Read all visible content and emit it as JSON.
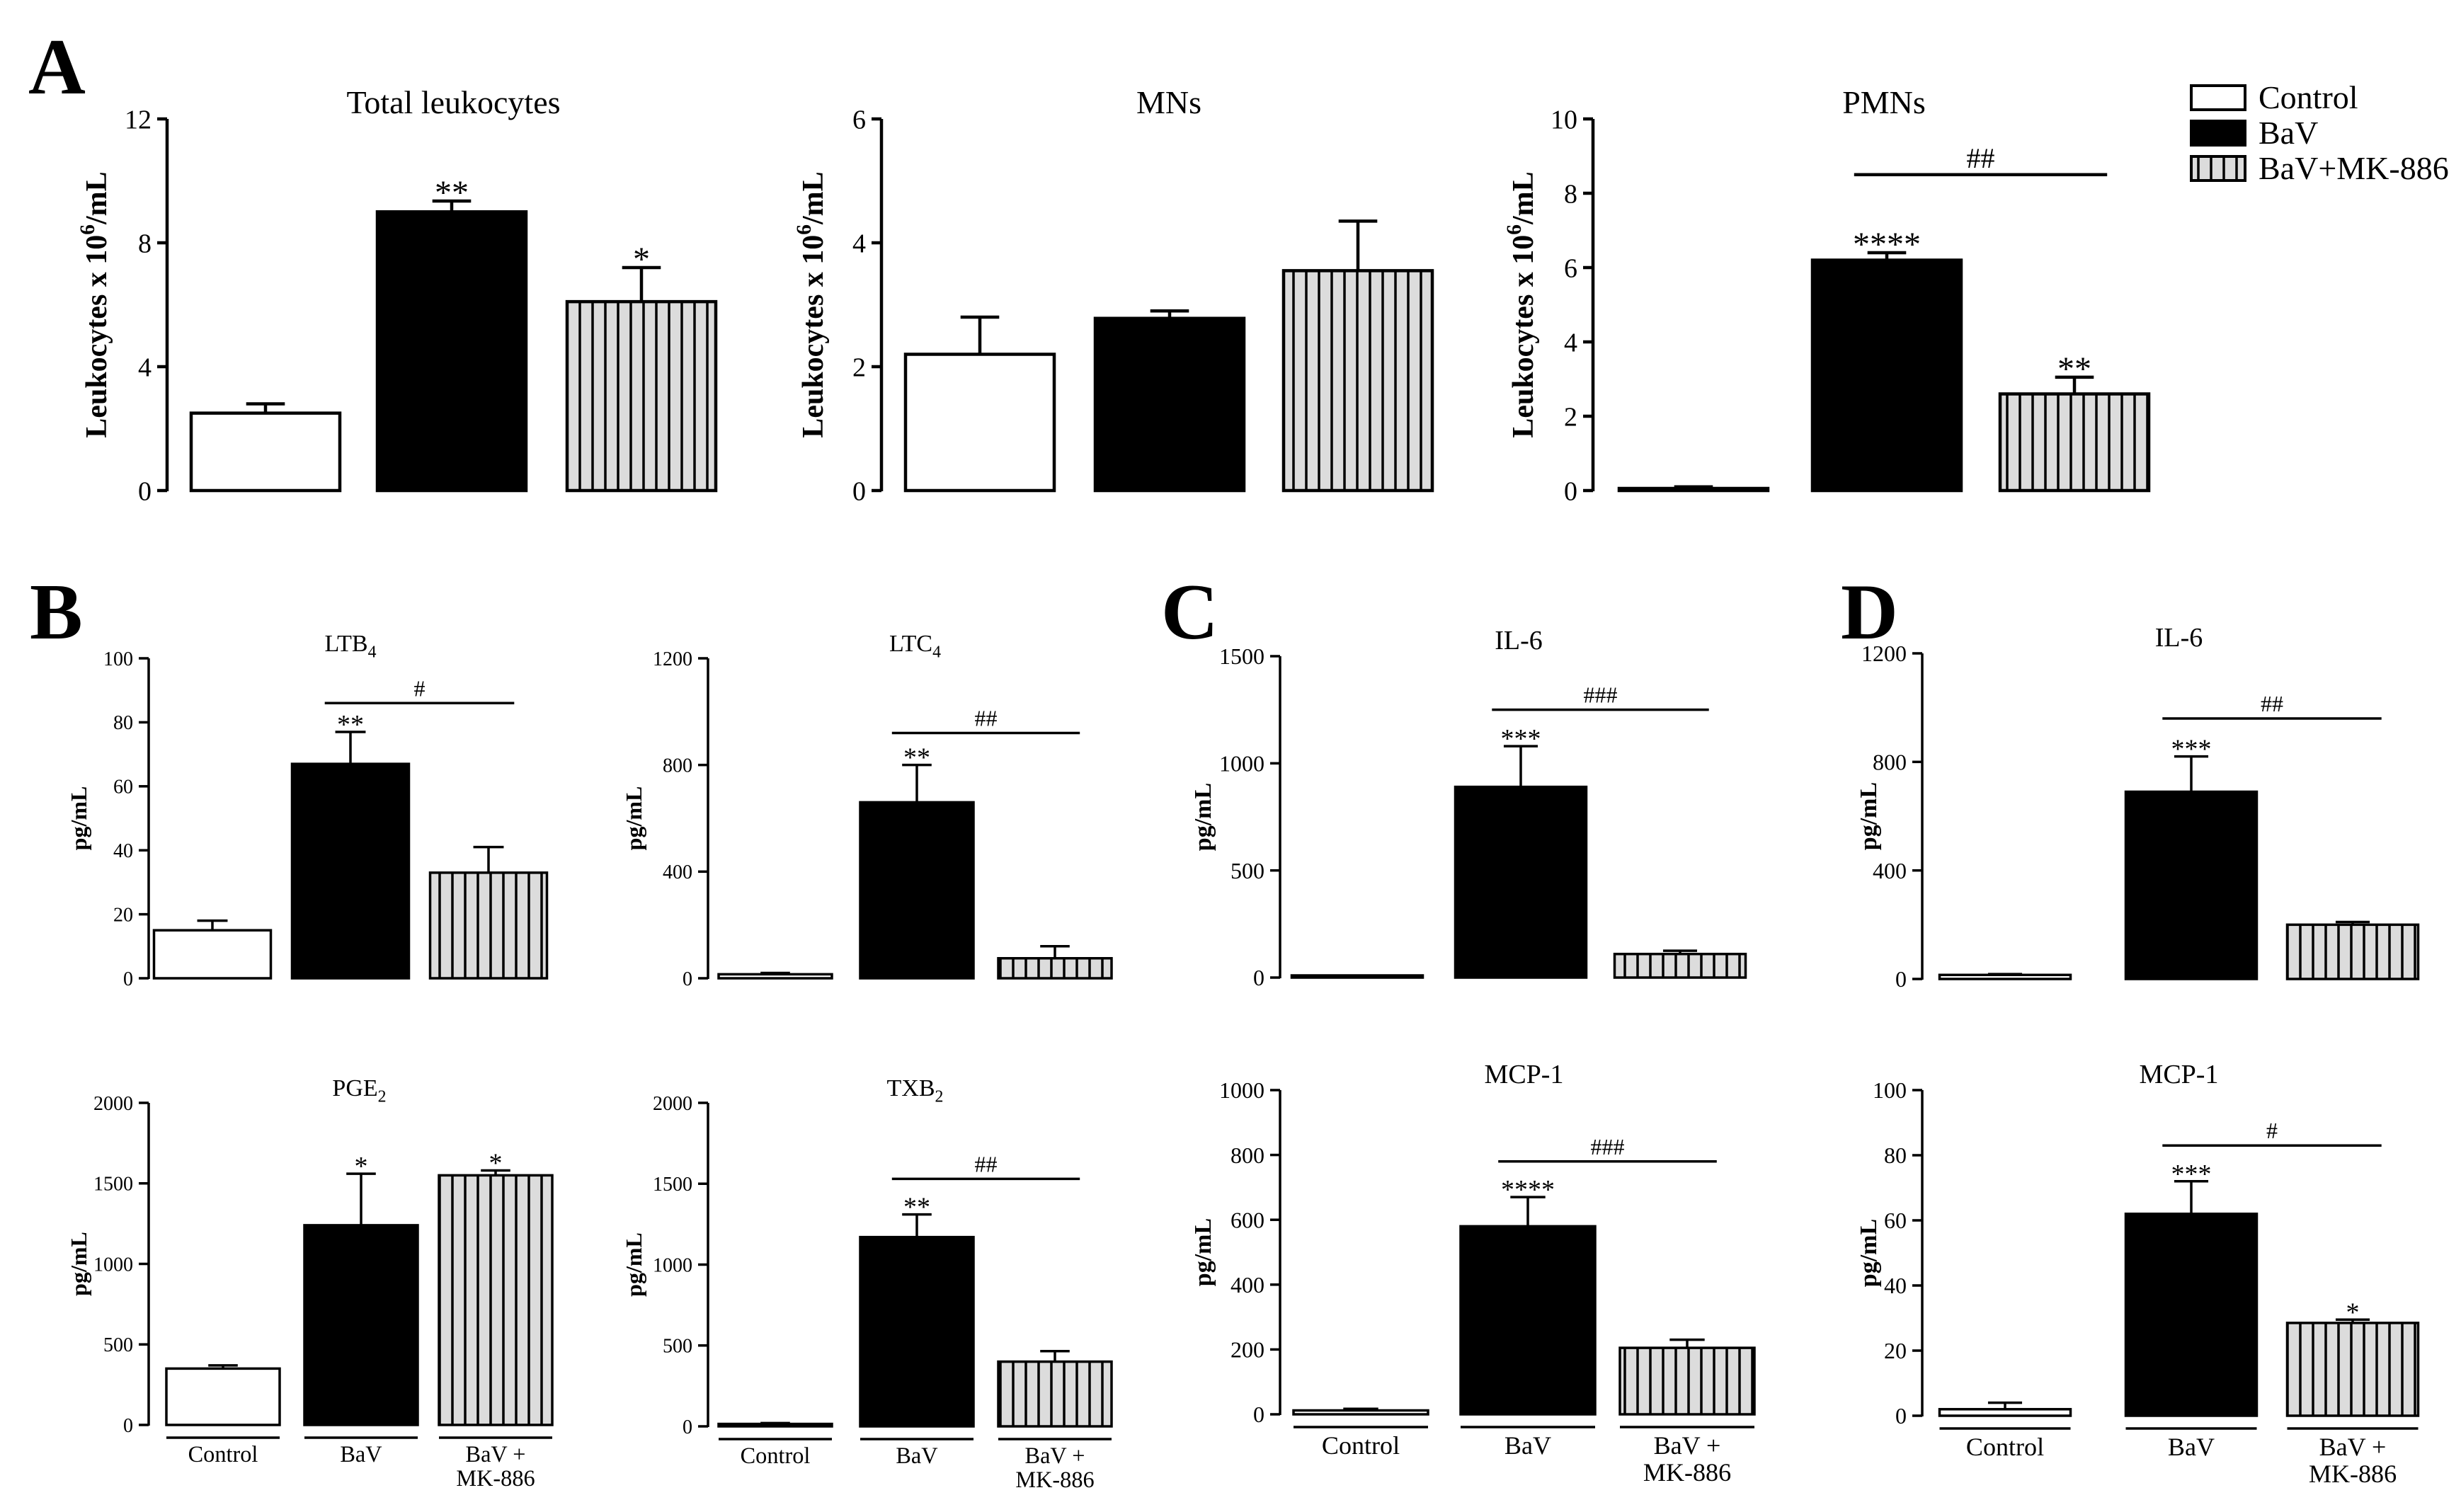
{
  "figure": {
    "panels": [
      "A",
      "B",
      "C",
      "D"
    ]
  },
  "legend": {
    "items": [
      {
        "label": "Control",
        "fill": "white"
      },
      {
        "label": "BaV",
        "fill": "black"
      },
      {
        "label": "BaV+MK-886",
        "fill": "hatch"
      }
    ]
  },
  "colors": {
    "control": "#ffffff",
    "bav": "#000000",
    "hatch_bg": "#d9d9d9",
    "line": "#000000"
  },
  "chart_data": [
    {
      "id": "A1",
      "type": "bar",
      "title": "Total leukocytes",
      "title_sub": "",
      "ylabel": "Leukocytes x 10^6/mL",
      "ylim": [
        0,
        12
      ],
      "yticks": [
        "0",
        "4",
        "8",
        "12"
      ],
      "categories": [
        "Control",
        "BaV",
        "BaV+MK-886"
      ],
      "values": [
        2.5,
        9.0,
        6.1
      ],
      "errors": [
        0.3,
        0.35,
        1.1
      ],
      "stars": [
        "",
        "**",
        "*"
      ],
      "bracket": null,
      "xlabels": null
    },
    {
      "id": "A2",
      "type": "bar",
      "title": "MNs",
      "title_sub": "",
      "ylabel": "Leukocytes x 10^6/mL",
      "ylim": [
        0,
        6
      ],
      "yticks": [
        "0",
        "2",
        "4",
        "6"
      ],
      "categories": [
        "Control",
        "BaV",
        "BaV+MK-886"
      ],
      "values": [
        2.2,
        2.78,
        3.55
      ],
      "errors": [
        0.6,
        0.12,
        0.8
      ],
      "stars": [
        "",
        "",
        ""
      ],
      "bracket": null,
      "xlabels": null
    },
    {
      "id": "A3",
      "type": "bar",
      "title": "PMNs",
      "title_sub": "",
      "ylabel": "Leukocytes x 10^6/mL",
      "ylim": [
        0,
        10
      ],
      "yticks": [
        "0",
        "2",
        "4",
        "6",
        "8",
        "10"
      ],
      "categories": [
        "Control",
        "BaV",
        "BaV+MK-886"
      ],
      "values": [
        0.05,
        6.2,
        2.6
      ],
      "errors": [
        0.05,
        0.2,
        0.45
      ],
      "stars": [
        "",
        "****",
        "**"
      ],
      "bracket": {
        "label": "##",
        "y": 8.5
      },
      "xlabels": null
    },
    {
      "id": "B1",
      "type": "bar",
      "title": "LTB",
      "title_sub": "4",
      "ylabel": "pg/mL",
      "ylim": [
        0,
        100
      ],
      "yticks": [
        "0",
        "20",
        "40",
        "60",
        "80",
        "100"
      ],
      "categories": [
        "Control",
        "BaV",
        "BaV+MK-886"
      ],
      "values": [
        15,
        67,
        33
      ],
      "errors": [
        3,
        10,
        8
      ],
      "stars": [
        "",
        "**",
        ""
      ],
      "bracket": {
        "label": "#",
        "y": 86
      },
      "xlabels": null
    },
    {
      "id": "B2",
      "type": "bar",
      "title": "LTC",
      "title_sub": "4",
      "ylabel": "pg/mL",
      "ylim": [
        0,
        1200
      ],
      "yticks": [
        "0",
        "400",
        "800",
        "1200"
      ],
      "categories": [
        "Control",
        "BaV",
        "BaV+MK-886"
      ],
      "values": [
        15,
        660,
        75
      ],
      "errors": [
        5,
        140,
        45
      ],
      "stars": [
        "",
        "**",
        ""
      ],
      "bracket": {
        "label": "##",
        "y": 920
      },
      "xlabels": null
    },
    {
      "id": "B3",
      "type": "bar",
      "title": "PGE",
      "title_sub": "2",
      "ylabel": "pg/mL",
      "ylim": [
        0,
        2000
      ],
      "yticks": [
        "0",
        "500",
        "1000",
        "1500",
        "2000"
      ],
      "categories": [
        "Control",
        "BaV",
        "BaV+MK-886"
      ],
      "values": [
        350,
        1240,
        1550
      ],
      "errors": [
        20,
        320,
        30
      ],
      "stars": [
        "",
        "*",
        "*"
      ],
      "bracket": null,
      "xlabels": [
        [
          "Control"
        ],
        [
          "BaV"
        ],
        [
          "BaV +",
          "MK-886"
        ]
      ]
    },
    {
      "id": "B4",
      "type": "bar",
      "title": "TXB",
      "title_sub": "2",
      "ylabel": "pg/mL",
      "ylim": [
        0,
        2000
      ],
      "yticks": [
        "0",
        "500",
        "1000",
        "1500",
        "2000"
      ],
      "categories": [
        "Control",
        "BaV",
        "BaV+MK-886"
      ],
      "values": [
        15,
        1170,
        400
      ],
      "errors": [
        5,
        140,
        65
      ],
      "stars": [
        "",
        "**",
        ""
      ],
      "bracket": {
        "label": "##",
        "y": 1530
      },
      "xlabels": [
        [
          "Control"
        ],
        [
          "BaV"
        ],
        [
          "BaV +",
          "MK-886"
        ]
      ]
    },
    {
      "id": "C1",
      "type": "bar",
      "title": "IL-6",
      "title_sub": "",
      "ylabel": "pg/mL",
      "ylim": [
        0,
        1500
      ],
      "yticks": [
        "0",
        "500",
        "1000",
        "1500"
      ],
      "categories": [
        "Control",
        "BaV",
        "BaV+MK-886"
      ],
      "values": [
        5,
        890,
        110
      ],
      "errors": [
        3,
        190,
        15
      ],
      "stars": [
        "",
        "***",
        ""
      ],
      "bracket": {
        "label": "###",
        "y": 1250
      },
      "xlabels": null
    },
    {
      "id": "C2",
      "type": "bar",
      "title": "MCP-1",
      "title_sub": "",
      "ylabel": "pg/mL",
      "ylim": [
        0,
        1000
      ],
      "yticks": [
        "0",
        "200",
        "400",
        "600",
        "800",
        "1000"
      ],
      "categories": [
        "Control",
        "BaV",
        "BaV+MK-886"
      ],
      "values": [
        12,
        580,
        205
      ],
      "errors": [
        5,
        90,
        25
      ],
      "stars": [
        "",
        "****",
        ""
      ],
      "bracket": {
        "label": "###",
        "y": 780
      },
      "xlabels": [
        [
          "Control"
        ],
        [
          "BaV"
        ],
        [
          "BaV +",
          "MK-886"
        ]
      ]
    },
    {
      "id": "D1",
      "type": "bar",
      "title": "IL-6",
      "title_sub": "",
      "ylabel": "pg/mL",
      "ylim": [
        0,
        1200
      ],
      "yticks": [
        "0",
        "400",
        "800",
        "1200"
      ],
      "categories": [
        "Control",
        "BaV",
        "BaV+MK-886"
      ],
      "values": [
        15,
        690,
        200
      ],
      "errors": [
        3,
        130,
        10
      ],
      "stars": [
        "",
        "***",
        ""
      ],
      "bracket": {
        "label": "##",
        "y": 960
      },
      "xlabels": null
    },
    {
      "id": "D2",
      "type": "bar",
      "title": "MCP-1",
      "title_sub": "",
      "ylabel": "pg/mL",
      "ylim": [
        0,
        100
      ],
      "yticks": [
        "0",
        "20",
        "40",
        "60",
        "80",
        "100"
      ],
      "categories": [
        "Control",
        "BaV",
        "BaV+MK-886"
      ],
      "values": [
        2,
        62,
        28.5
      ],
      "errors": [
        2,
        10,
        1
      ],
      "stars": [
        "",
        "***",
        "*"
      ],
      "bracket": {
        "label": "#",
        "y": 83
      },
      "xlabels": [
        [
          "Control"
        ],
        [
          "BaV"
        ],
        [
          "BaV +",
          "MK-886"
        ]
      ]
    }
  ]
}
